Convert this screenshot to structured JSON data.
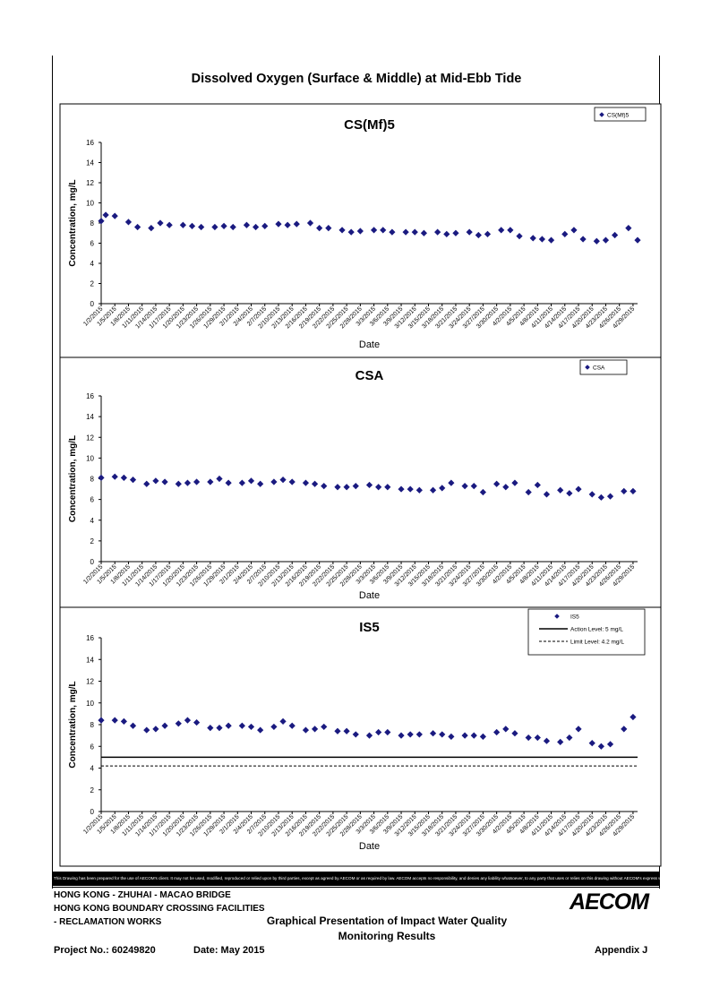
{
  "page_title": "Dissolved Oxygen (Surface & Middle) at Mid-Ebb Tide",
  "disclaimer": "This Drawing has been prepared for the use of AECOM's client. It may not be used, modified, reproduced or relied upon by third parties, except as agreed by AECOM or as required by law. AECOM accepts no responsibility, and denies any liability whatsoever, to any party that uses or relies on this drawing without AECOM's express written consent.",
  "footer": {
    "project_line1": "HONG KONG - ZHUHAI - MACAO BRIDGE",
    "project_line2": "HONG KONG BOUNDARY CROSSING FACILITIES",
    "project_line3": "- RECLAMATION WORKS",
    "doc_title_line1": "Graphical Presentation of Impact Water Quality",
    "doc_title_line2": "Monitoring Results",
    "project_no": "Project No.: 60249820",
    "date": "Date: May 2015",
    "appendix": "Appendix J",
    "logo": "AECOM"
  },
  "colors": {
    "marker": "#1a1a80",
    "line": "#000000"
  },
  "chart_data": [
    {
      "type": "scatter",
      "title": "CS(Mf)5",
      "xlabel": "Date",
      "ylabel": "Concentration, mg/L",
      "ylim": [
        0,
        16
      ],
      "yticks": [
        0,
        2,
        4,
        6,
        8,
        10,
        12,
        14,
        16
      ],
      "x_tick_labels": [
        "1/2/2015",
        "1/5/2015",
        "1/8/2015",
        "1/11/2015",
        "1/14/2015",
        "1/17/2015",
        "1/20/2015",
        "1/23/2015",
        "1/26/2015",
        "1/29/2015",
        "2/1/2015",
        "2/4/2015",
        "2/7/2015",
        "2/10/2015",
        "2/13/2015",
        "2/16/2015",
        "2/19/2015",
        "2/22/2015",
        "2/25/2015",
        "2/28/2015",
        "3/3/2015",
        "3/6/2015",
        "3/9/2015",
        "3/12/2015",
        "3/15/2015",
        "3/18/2015",
        "3/21/2015",
        "3/24/2015",
        "3/27/2015",
        "3/30/2015",
        "4/2/2015",
        "4/5/2015",
        "4/8/2015",
        "4/11/2015",
        "4/14/2015",
        "4/17/2015",
        "4/20/2015",
        "4/23/2015",
        "4/26/2015",
        "4/29/2015"
      ],
      "legend": "top-right",
      "series": [
        {
          "name": "CS(Mf)5",
          "x": [
            "1/2/2015",
            "1/3/2015",
            "1/5/2015",
            "1/8/2015",
            "1/10/2015",
            "1/13/2015",
            "1/15/2015",
            "1/17/2015",
            "1/20/2015",
            "1/22/2015",
            "1/24/2015",
            "1/27/2015",
            "1/29/2015",
            "1/31/2015",
            "2/3/2015",
            "2/5/2015",
            "2/7/2015",
            "2/10/2015",
            "2/12/2015",
            "2/14/2015",
            "2/17/2015",
            "2/19/2015",
            "2/21/2015",
            "2/24/2015",
            "2/26/2015",
            "2/28/2015",
            "3/3/2015",
            "3/5/2015",
            "3/7/2015",
            "3/10/2015",
            "3/12/2015",
            "3/14/2015",
            "3/17/2015",
            "3/19/2015",
            "3/21/2015",
            "3/24/2015",
            "3/26/2015",
            "3/28/2015",
            "3/31/2015",
            "4/2/2015",
            "4/4/2015",
            "4/7/2015",
            "4/9/2015",
            "4/11/2015",
            "4/14/2015",
            "4/16/2015",
            "4/18/2015",
            "4/21/2015",
            "4/23/2015",
            "4/25/2015",
            "4/28/2015",
            "4/30/2015"
          ],
          "values": [
            8.2,
            8.8,
            8.7,
            8.1,
            7.6,
            7.5,
            8.0,
            7.8,
            7.8,
            7.7,
            7.6,
            7.6,
            7.7,
            7.6,
            7.8,
            7.6,
            7.7,
            7.9,
            7.8,
            7.9,
            8.0,
            7.5,
            7.5,
            7.3,
            7.1,
            7.2,
            7.3,
            7.3,
            7.1,
            7.1,
            7.1,
            7.0,
            7.1,
            6.9,
            7.0,
            7.1,
            6.8,
            6.9,
            7.3,
            7.3,
            6.7,
            6.5,
            6.4,
            6.3,
            6.9,
            7.3,
            6.4,
            6.2,
            6.3,
            6.8,
            7.5,
            6.3
          ]
        }
      ]
    },
    {
      "type": "scatter",
      "title": "CSA",
      "xlabel": "Date",
      "ylabel": "Concentration, mg/L",
      "ylim": [
        0,
        16
      ],
      "yticks": [
        0,
        2,
        4,
        6,
        8,
        10,
        12,
        14,
        16
      ],
      "x_tick_labels": [
        "1/2/2015",
        "1/5/2015",
        "1/8/2015",
        "1/11/2015",
        "1/14/2015",
        "1/17/2015",
        "1/20/2015",
        "1/23/2015",
        "1/26/2015",
        "1/29/2015",
        "2/1/2015",
        "2/4/2015",
        "2/7/2015",
        "2/10/2015",
        "2/13/2015",
        "2/16/2015",
        "2/19/2015",
        "2/22/2015",
        "2/25/2015",
        "2/28/2015",
        "3/3/2015",
        "3/6/2015",
        "3/9/2015",
        "3/12/2015",
        "3/15/2015",
        "3/18/2015",
        "3/21/2015",
        "3/24/2015",
        "3/27/2015",
        "3/30/2015",
        "4/2/2015",
        "4/5/2015",
        "4/8/2015",
        "4/11/2015",
        "4/14/2015",
        "4/17/2015",
        "4/20/2015",
        "4/23/2015",
        "4/26/2015",
        "4/29/2015"
      ],
      "legend": "top-right",
      "series": [
        {
          "name": "CSA",
          "x": [
            "1/2/2015",
            "1/5/2015",
            "1/7/2015",
            "1/9/2015",
            "1/12/2015",
            "1/14/2015",
            "1/16/2015",
            "1/19/2015",
            "1/21/2015",
            "1/23/2015",
            "1/26/2015",
            "1/28/2015",
            "1/30/2015",
            "2/2/2015",
            "2/4/2015",
            "2/6/2015",
            "2/9/2015",
            "2/11/2015",
            "2/13/2015",
            "2/16/2015",
            "2/18/2015",
            "2/20/2015",
            "2/23/2015",
            "2/25/2015",
            "2/27/2015",
            "3/2/2015",
            "3/4/2015",
            "3/6/2015",
            "3/9/2015",
            "3/11/2015",
            "3/13/2015",
            "3/16/2015",
            "3/18/2015",
            "3/20/2015",
            "3/23/2015",
            "3/25/2015",
            "3/27/2015",
            "3/30/2015",
            "4/1/2015",
            "4/3/2015",
            "4/6/2015",
            "4/8/2015",
            "4/10/2015",
            "4/13/2015",
            "4/15/2015",
            "4/17/2015",
            "4/20/2015",
            "4/22/2015",
            "4/24/2015",
            "4/27/2015",
            "4/29/2015"
          ],
          "values": [
            8.1,
            8.2,
            8.1,
            7.9,
            7.5,
            7.8,
            7.7,
            7.5,
            7.6,
            7.7,
            7.7,
            8.0,
            7.6,
            7.6,
            7.8,
            7.5,
            7.7,
            7.9,
            7.7,
            7.6,
            7.5,
            7.3,
            7.2,
            7.2,
            7.3,
            7.4,
            7.2,
            7.2,
            7.0,
            7.0,
            6.9,
            6.9,
            7.1,
            7.6,
            7.3,
            7.3,
            6.7,
            7.5,
            7.2,
            7.6,
            6.7,
            7.4,
            6.5,
            6.9,
            6.6,
            7.0,
            6.5,
            6.2,
            6.3,
            6.8,
            6.8
          ]
        }
      ]
    },
    {
      "type": "scatter",
      "title": "IS5",
      "xlabel": "Date",
      "ylabel": "Concentration, mg/L",
      "ylim": [
        0,
        16
      ],
      "yticks": [
        0,
        2,
        4,
        6,
        8,
        10,
        12,
        14,
        16
      ],
      "x_tick_labels": [
        "1/2/2015",
        "1/5/2015",
        "1/8/2015",
        "1/11/2015",
        "1/14/2015",
        "1/17/2015",
        "1/20/2015",
        "1/23/2015",
        "1/26/2015",
        "1/29/2015",
        "2/1/2015",
        "2/4/2015",
        "2/7/2015",
        "2/10/2015",
        "2/13/2015",
        "2/16/2015",
        "2/19/2015",
        "2/22/2015",
        "2/25/2015",
        "2/28/2015",
        "3/3/2015",
        "3/6/2015",
        "3/9/2015",
        "3/12/2015",
        "3/15/2015",
        "3/18/2015",
        "3/21/2015",
        "3/24/2015",
        "3/27/2015",
        "3/30/2015",
        "4/2/2015",
        "4/5/2015",
        "4/8/2015",
        "4/11/2015",
        "4/14/2015",
        "4/17/2015",
        "4/20/2015",
        "4/23/2015",
        "4/26/2015",
        "4/29/2015"
      ],
      "legend": "top-right",
      "series": [
        {
          "name": "IS5",
          "x": [
            "1/2/2015",
            "1/5/2015",
            "1/7/2015",
            "1/9/2015",
            "1/12/2015",
            "1/14/2015",
            "1/16/2015",
            "1/19/2015",
            "1/21/2015",
            "1/23/2015",
            "1/26/2015",
            "1/28/2015",
            "1/30/2015",
            "2/2/2015",
            "2/4/2015",
            "2/6/2015",
            "2/9/2015",
            "2/11/2015",
            "2/13/2015",
            "2/16/2015",
            "2/18/2015",
            "2/20/2015",
            "2/23/2015",
            "2/25/2015",
            "2/27/2015",
            "3/2/2015",
            "3/4/2015",
            "3/6/2015",
            "3/9/2015",
            "3/11/2015",
            "3/13/2015",
            "3/16/2015",
            "3/18/2015",
            "3/20/2015",
            "3/23/2015",
            "3/25/2015",
            "3/27/2015",
            "3/30/2015",
            "4/1/2015",
            "4/3/2015",
            "4/6/2015",
            "4/8/2015",
            "4/10/2015",
            "4/13/2015",
            "4/15/2015",
            "4/17/2015",
            "4/20/2015",
            "4/22/2015",
            "4/24/2015",
            "4/27/2015",
            "4/29/2015"
          ],
          "values": [
            8.4,
            8.4,
            8.3,
            7.9,
            7.5,
            7.6,
            7.9,
            8.1,
            8.4,
            8.2,
            7.7,
            7.7,
            7.9,
            7.9,
            7.8,
            7.5,
            7.8,
            8.3,
            7.9,
            7.5,
            7.6,
            7.8,
            7.4,
            7.4,
            7.1,
            7.0,
            7.3,
            7.3,
            7.0,
            7.1,
            7.1,
            7.2,
            7.1,
            6.9,
            7.0,
            7.0,
            6.9,
            7.3,
            7.6,
            7.2,
            6.8,
            6.8,
            6.5,
            6.4,
            6.8,
            7.6,
            6.3,
            6.0,
            6.2,
            7.6,
            8.7
          ]
        },
        {
          "name": "Action Level: 5 mg/L",
          "type": "hline",
          "value": 5,
          "style": "solid"
        },
        {
          "name": "Limit Level: 4.2 mg/L",
          "type": "hline",
          "value": 4.2,
          "style": "dashed"
        }
      ]
    }
  ]
}
